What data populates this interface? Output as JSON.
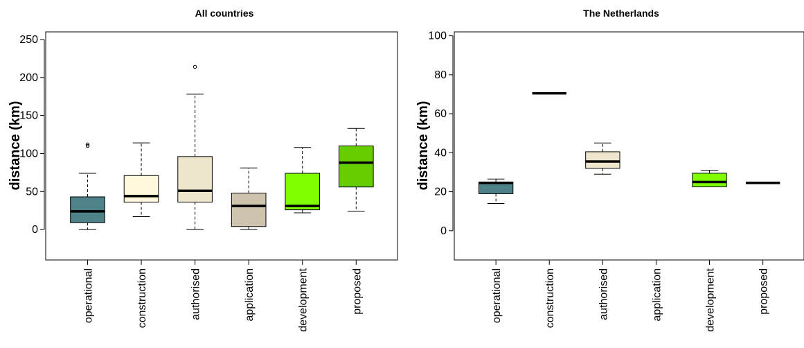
{
  "colors": {
    "operational": "#4f8188",
    "construction": "#fff8dc",
    "authorised": "#ede5cc",
    "application": "#cec4ae",
    "development": "#7fff00",
    "proposed": "#66cd00"
  },
  "chart_data": [
    {
      "type": "box",
      "title": "All countries",
      "ylabel": "distance (km)",
      "ylim": [
        -40,
        260
      ],
      "yticks": [
        0,
        50,
        100,
        150,
        200,
        250
      ],
      "categories": [
        "operational",
        "construction",
        "authorised",
        "application",
        "development",
        "proposed"
      ],
      "boxes": [
        {
          "min": 0,
          "q1": 9,
          "median": 24,
          "q3": 43,
          "max": 74,
          "outliers": [
            110,
            112
          ]
        },
        {
          "min": 17,
          "q1": 36,
          "median": 44,
          "q3": 71,
          "max": 114,
          "outliers": []
        },
        {
          "min": 0,
          "q1": 36,
          "median": 51,
          "q3": 96,
          "max": 178,
          "outliers": [
            214
          ]
        },
        {
          "min": 0,
          "q1": 4,
          "median": 31,
          "q3": 48,
          "max": 81,
          "outliers": []
        },
        {
          "min": 22,
          "q1": 26,
          "median": 31,
          "q3": 74,
          "max": 108,
          "outliers": []
        },
        {
          "min": 24,
          "q1": 56,
          "median": 88,
          "q3": 110,
          "max": 133,
          "outliers": []
        }
      ]
    },
    {
      "type": "box",
      "title": "The Netherlands",
      "ylabel": "distance (km)",
      "ylim": [
        -15,
        102
      ],
      "yticks": [
        0,
        20,
        40,
        60,
        80,
        100
      ],
      "categories": [
        "operational",
        "construction",
        "authorised",
        "application",
        "development",
        "proposed"
      ],
      "boxes": [
        {
          "min": 14,
          "q1": 19,
          "median": 24.5,
          "q3": 25,
          "max": 26.5,
          "outliers": []
        },
        {
          "min": 70.5,
          "q1": 70.5,
          "median": 70.5,
          "q3": 70.5,
          "max": 70.5,
          "outliers": []
        },
        {
          "min": 29,
          "q1": 32,
          "median": 35.5,
          "q3": 40.5,
          "max": 45,
          "outliers": []
        },
        null,
        {
          "min": 22.5,
          "q1": 22.5,
          "median": 25,
          "q3": 29.5,
          "max": 31,
          "outliers": []
        },
        {
          "min": 24.5,
          "q1": 24.5,
          "median": 24.5,
          "q3": 24.5,
          "max": 24.5,
          "outliers": []
        }
      ]
    }
  ]
}
